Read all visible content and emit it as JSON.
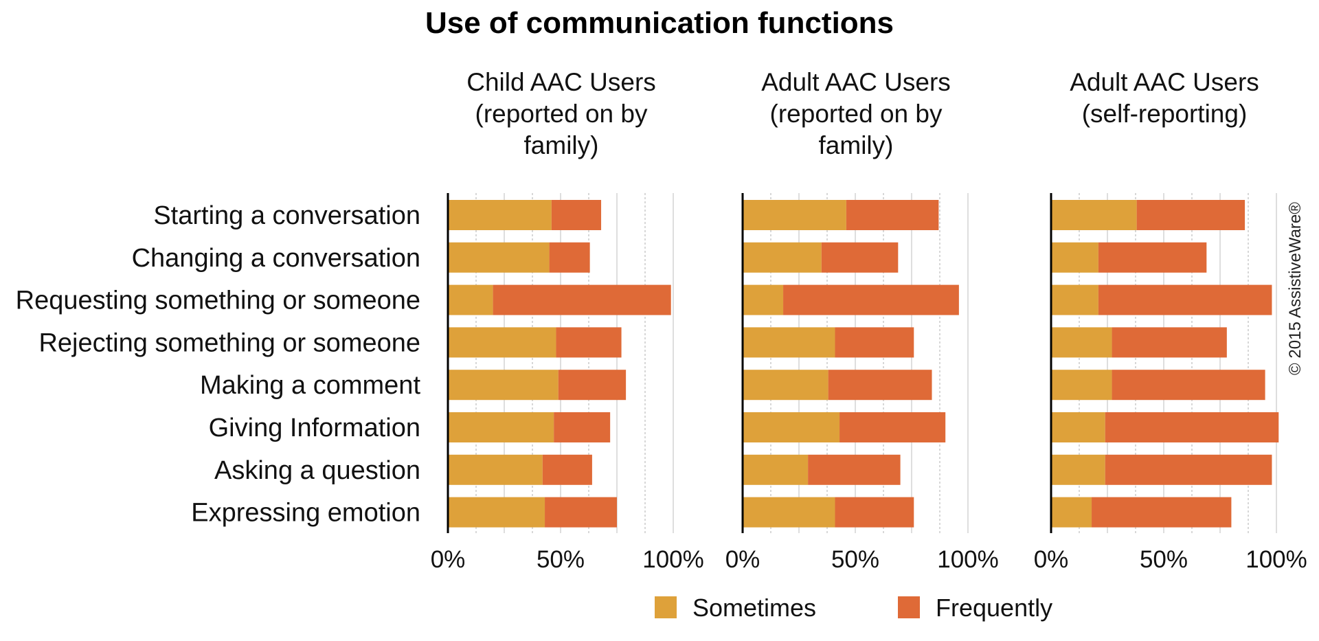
{
  "chart_data": {
    "type": "bar",
    "orientation": "horizontal",
    "stacked": true,
    "title": "Use of communication functions",
    "categories": [
      "Starting a conversation",
      "Changing a conversation",
      "Requesting something or someone",
      "Rejecting something or someone",
      "Making a comment",
      "Giving Information",
      "Asking a question",
      "Expressing emotion"
    ],
    "xlim": [
      0,
      100
    ],
    "x_ticks": [
      "0%",
      "50%",
      "100%"
    ],
    "grid": true,
    "legend": [
      {
        "name": "Sometimes",
        "color": "#DEA13A"
      },
      {
        "name": "Frequently",
        "color": "#DF6A37"
      }
    ],
    "legend_placement": "bottom",
    "panels": [
      {
        "title": "Child AAC Users (reported on by family)",
        "title_lines": [
          "Child AAC Users",
          "(reported on by",
          "family)"
        ],
        "series": [
          {
            "name": "Sometimes",
            "values": [
              46,
              45,
              20,
              48,
              49,
              47,
              42,
              43
            ]
          },
          {
            "name": "Frequently",
            "values": [
              22,
              18,
              79,
              29,
              30,
              25,
              22,
              32
            ]
          }
        ]
      },
      {
        "title": "Adult AAC Users (reported on by family)",
        "title_lines": [
          "Adult AAC Users",
          "(reported on by",
          "family)"
        ],
        "series": [
          {
            "name": "Sometimes",
            "values": [
              46,
              35,
              18,
              41,
              38,
              43,
              29,
              41
            ]
          },
          {
            "name": "Frequently",
            "values": [
              41,
              34,
              78,
              35,
              46,
              47,
              41,
              35
            ]
          }
        ]
      },
      {
        "title": "Adult AAC Users (self-reporting)",
        "title_lines": [
          "Adult AAC Users",
          "(self-reporting)"
        ],
        "series": [
          {
            "name": "Sometimes",
            "values": [
              38,
              21,
              21,
              27,
              27,
              24,
              24,
              18
            ]
          },
          {
            "name": "Frequently",
            "values": [
              48,
              48,
              77,
              51,
              68,
              77,
              74,
              62
            ]
          }
        ]
      }
    ]
  },
  "copyright": "© 2015 AssistiveWare®"
}
